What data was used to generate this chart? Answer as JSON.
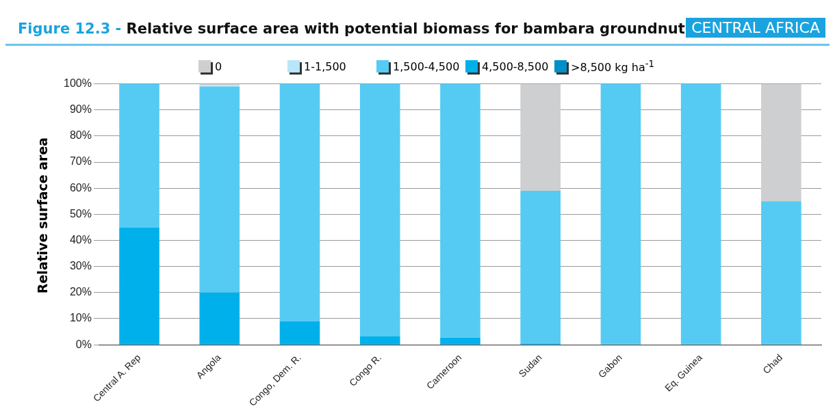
{
  "chart_data": {
    "type": "bar",
    "title": "Figure 12.3 - Relative surface area with potential biomass for bambara groundnut",
    "subtitle": "CENTRAL AFRICA",
    "ylabel": "Relative surface area",
    "stacked": true,
    "grid": "y",
    "legend": "top",
    "categories": [
      "Central A. Rep",
      "Angola",
      "Congo, Dem. R.",
      "Congo R.",
      "Cameroon",
      "Sudan",
      "Gabon",
      "Eq. Guinea",
      "Chad"
    ],
    "ylim": [
      0,
      100
    ],
    "yticks": [
      {
        "value": 0,
        "label": "0%"
      },
      {
        "value": 10,
        "label": "10%"
      },
      {
        "value": 20,
        "label": "20%"
      },
      {
        "value": 30,
        "label": "30%"
      },
      {
        "value": 40,
        "label": "40%"
      },
      {
        "value": 50,
        "label": "50%"
      },
      {
        "value": 60,
        "label": "60%"
      },
      {
        "value": 70,
        "label": "70%"
      },
      {
        "value": 80,
        "label": "80%"
      },
      {
        "value": 90,
        "label": "90%"
      },
      {
        "value": 100,
        "label": "100%"
      }
    ],
    "series": [
      {
        "name": ">8,500 kg ha$^{-1}$",
        "color": "#0090c8",
        "values": [
          0,
          0,
          0,
          0,
          0,
          0,
          0,
          0,
          0
        ]
      },
      {
        "name": "4,500-8,500",
        "color": "#00b0eb",
        "values": [
          45,
          20,
          9,
          3.3,
          2.7,
          0.5,
          0,
          0,
          0
        ]
      },
      {
        "name": "1,500-4,500",
        "color": "#55cbf4",
        "values": [
          55,
          79,
          91,
          96.7,
          97.3,
          58.5,
          100,
          100,
          55
        ]
      },
      {
        "name": "1-1,500",
        "color": "#b9e5f9",
        "values": [
          0,
          0.5,
          0,
          0,
          0,
          0,
          0,
          0,
          0
        ]
      },
      {
        "name": "0",
        "color": "#cdcfd1",
        "values": [
          0,
          0.5,
          0,
          0,
          0,
          41,
          0,
          0,
          45
        ]
      }
    ]
  }
}
